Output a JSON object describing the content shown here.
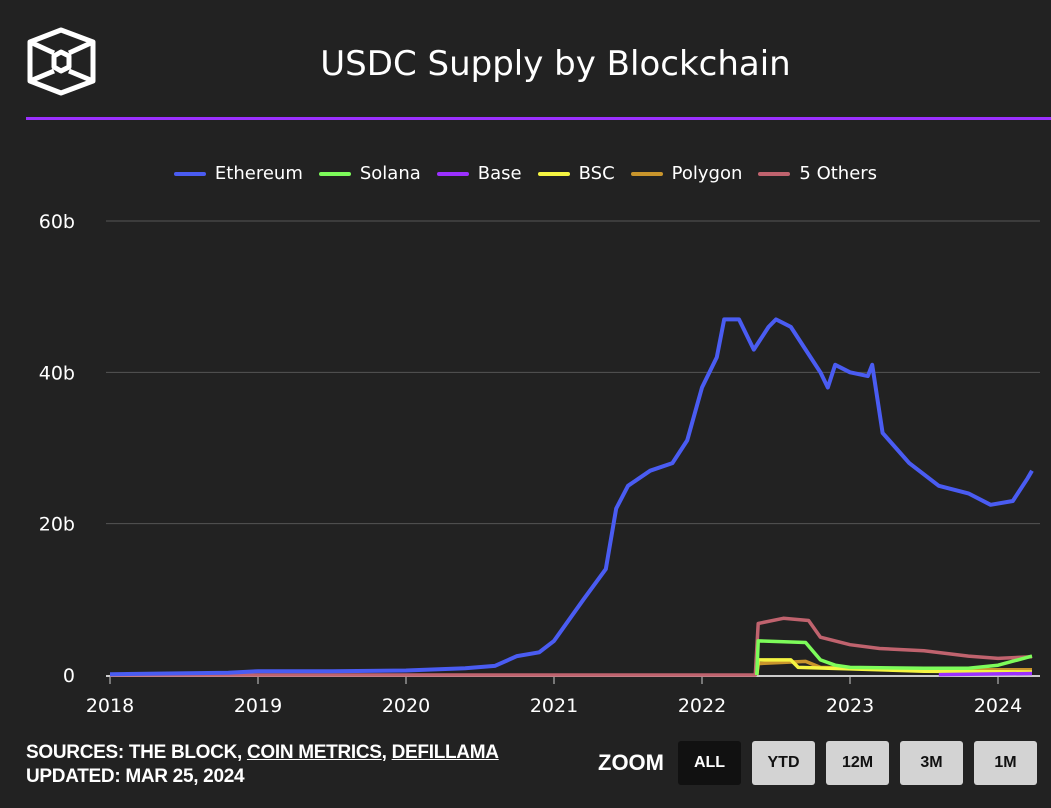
{
  "title": "USDC Supply by Blockchain",
  "footer": {
    "sources_prefix": "SOURCES: THE BLOCK, ",
    "source_links": [
      "COIN METRICS",
      "DEFILLAMA"
    ],
    "separator": ", ",
    "updated": "UPDATED: MAR 25, 2024"
  },
  "zoom": {
    "label": "ZOOM",
    "buttons": [
      "ALL",
      "YTD",
      "12M",
      "3M",
      "1M"
    ],
    "active": "ALL"
  },
  "chart_data": {
    "type": "line",
    "title": "USDC Supply by Blockchain",
    "xlabel": "",
    "ylabel": "",
    "xlim": [
      2018,
      2024.25
    ],
    "ylim": [
      0,
      60
    ],
    "x_ticks": [
      "2018",
      "2019",
      "2020",
      "2021",
      "2022",
      "2023",
      "2024"
    ],
    "y_ticks": [
      "0",
      "20b",
      "40b",
      "60b"
    ],
    "legend_position": "top",
    "grid": true,
    "series": [
      {
        "name": "Ethereum",
        "color": "#4a5cf2",
        "points": [
          [
            2018,
            0.1
          ],
          [
            2018.8,
            0.3
          ],
          [
            2019,
            0.5
          ],
          [
            2019.5,
            0.5
          ],
          [
            2020,
            0.6
          ],
          [
            2020.4,
            0.9
          ],
          [
            2020.6,
            1.2
          ],
          [
            2020.75,
            2.5
          ],
          [
            2020.9,
            3
          ],
          [
            2021,
            4.5
          ],
          [
            2021.2,
            10
          ],
          [
            2021.35,
            14
          ],
          [
            2021.42,
            22
          ],
          [
            2021.5,
            25
          ],
          [
            2021.65,
            27
          ],
          [
            2021.8,
            28
          ],
          [
            2021.9,
            31
          ],
          [
            2022,
            38
          ],
          [
            2022.1,
            42
          ],
          [
            2022.15,
            47
          ],
          [
            2022.25,
            47
          ],
          [
            2022.35,
            43
          ],
          [
            2022.45,
            46
          ],
          [
            2022.5,
            47
          ],
          [
            2022.6,
            46
          ],
          [
            2022.7,
            43
          ],
          [
            2022.8,
            40
          ],
          [
            2022.85,
            38
          ],
          [
            2022.9,
            41
          ],
          [
            2023,
            40
          ],
          [
            2023.12,
            39.5
          ],
          [
            2023.15,
            41
          ],
          [
            2023.22,
            32
          ],
          [
            2023.4,
            28
          ],
          [
            2023.6,
            25
          ],
          [
            2023.8,
            24
          ],
          [
            2023.95,
            22.5
          ],
          [
            2024.1,
            23
          ],
          [
            2024.2,
            26
          ],
          [
            2024.23,
            27
          ]
        ]
      },
      {
        "name": "Solana",
        "color": "#7dfc5a",
        "points": [
          [
            2022.37,
            0
          ],
          [
            2022.38,
            4.5
          ],
          [
            2022.7,
            4.3
          ],
          [
            2022.8,
            2.0
          ],
          [
            2022.9,
            1.3
          ],
          [
            2023,
            1.0
          ],
          [
            2023.5,
            0.9
          ],
          [
            2023.8,
            0.9
          ],
          [
            2024,
            1.3
          ],
          [
            2024.23,
            2.5
          ]
        ]
      },
      {
        "name": "Base",
        "color": "#9b30ff",
        "points": [
          [
            2023.6,
            0.05
          ],
          [
            2024.23,
            0.2
          ]
        ]
      },
      {
        "name": "BSC",
        "color": "#f5f542",
        "points": [
          [
            2022.37,
            0
          ],
          [
            2022.38,
            2.0
          ],
          [
            2022.6,
            2.0
          ],
          [
            2022.65,
            1.0
          ],
          [
            2023,
            0.8
          ],
          [
            2023.5,
            0.5
          ],
          [
            2024.23,
            0.4
          ]
        ]
      },
      {
        "name": "Polygon",
        "color": "#c9952c",
        "points": [
          [
            2022.37,
            0
          ],
          [
            2022.38,
            1.5
          ],
          [
            2022.7,
            1.8
          ],
          [
            2022.8,
            1.0
          ],
          [
            2023.5,
            0.7
          ],
          [
            2024.23,
            0.7
          ]
        ]
      },
      {
        "name": "5 Others",
        "color": "#c0636e",
        "points": [
          [
            2018,
            0
          ],
          [
            2022.36,
            0
          ],
          [
            2022.38,
            6.8
          ],
          [
            2022.55,
            7.5
          ],
          [
            2022.72,
            7.2
          ],
          [
            2022.8,
            5
          ],
          [
            2023,
            4
          ],
          [
            2023.2,
            3.5
          ],
          [
            2023.5,
            3.2
          ],
          [
            2023.8,
            2.5
          ],
          [
            2024,
            2.2
          ],
          [
            2024.23,
            2.4
          ]
        ]
      }
    ]
  }
}
